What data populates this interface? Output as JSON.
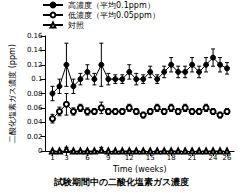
{
  "chart_data": {
    "type": "line",
    "title": "試験期間中の二酸化塩素ガス濃度",
    "x_label": "Time (weeks)",
    "y_label": "二酸化塩素ガス濃度 (ppm)",
    "x": [
      1,
      2,
      3,
      4,
      5,
      6,
      7,
      8,
      9,
      10,
      11,
      12,
      13,
      14,
      15,
      16,
      17,
      18,
      19,
      20,
      21,
      22,
      23,
      24,
      25,
      26
    ],
    "xlim": [
      0,
      27
    ],
    "xticks": [
      1,
      3,
      6,
      9,
      12,
      15,
      18,
      21,
      24,
      26
    ],
    "ylim": [
      0,
      0.16
    ],
    "yticks": [
      0,
      0.02,
      0.04,
      0.06,
      0.08,
      0.1,
      0.12,
      0.14,
      0.16
    ],
    "grid": false,
    "legend": "top-left",
    "series": [
      {
        "name": "高濃度（平均0.1ppm）",
        "color": "#000000",
        "marker": "circle",
        "line_style": "solid",
        "values": [
          0.08,
          0.09,
          0.12,
          0.09,
          0.1,
          0.11,
          0.1,
          0.12,
          0.1,
          0.1,
          0.1,
          0.11,
          0.1,
          0.1,
          0.11,
          0.1,
          0.11,
          0.12,
          0.11,
          0.11,
          0.12,
          0.11,
          0.12,
          0.13,
          0.12,
          0.115
        ],
        "error": [
          0.01,
          0.01,
          0.03,
          0.01,
          0.008,
          0.01,
          0.008,
          0.03,
          0.008,
          0.006,
          0.006,
          0.01,
          0.008,
          0.006,
          0.008,
          0.006,
          0.008,
          0.01,
          0.008,
          0.008,
          0.01,
          0.008,
          0.01,
          0.012,
          0.01,
          0.008
        ]
      },
      {
        "name": "低濃度（平均0.05ppm）",
        "color": "#000000",
        "marker": "open circle",
        "line_style": "solid",
        "values": [
          0.045,
          0.055,
          0.065,
          0.055,
          0.06,
          0.055,
          0.055,
          0.06,
          0.055,
          0.055,
          0.055,
          0.06,
          0.055,
          0.05,
          0.055,
          0.06,
          0.055,
          0.06,
          0.055,
          0.06,
          0.055,
          0.055,
          0.06,
          0.055,
          0.05,
          0.055
        ],
        "error": [
          0.006,
          0.006,
          0.015,
          0.005,
          0.005,
          0.005,
          0.004,
          0.008,
          0.004,
          0.004,
          0.004,
          0.005,
          0.004,
          0.004,
          0.004,
          0.005,
          0.004,
          0.005,
          0.004,
          0.005,
          0.004,
          0.004,
          0.005,
          0.004,
          0.004,
          0.004
        ]
      },
      {
        "name": "対照",
        "color": "#000000",
        "marker": "open triangle",
        "line_style": "dashed",
        "values": [
          0,
          0,
          0.002,
          0,
          0,
          0,
          0,
          0.001,
          0,
          0,
          0,
          0,
          0,
          0,
          0,
          0,
          0,
          0,
          0,
          0,
          0,
          0,
          0,
          0,
          0,
          0
        ],
        "error": [
          0,
          0,
          0.003,
          0,
          0,
          0,
          0,
          0.004,
          0,
          0,
          0,
          0,
          0,
          0,
          0,
          0,
          0,
          0,
          0,
          0,
          0,
          0,
          0,
          0,
          0,
          0
        ]
      }
    ]
  }
}
